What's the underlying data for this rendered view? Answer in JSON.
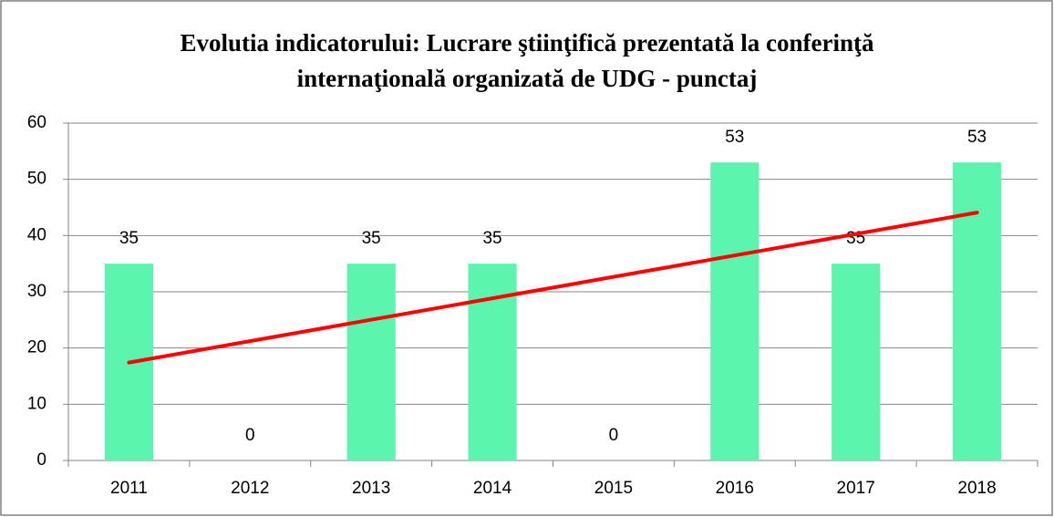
{
  "chart_data": {
    "type": "bar",
    "title": "Evolutia indicatorului: Lucrare ştiinţifică prezentată la conferinţă internaţională organizată de UDG - punctaj",
    "categories": [
      "2011",
      "2012",
      "2013",
      "2014",
      "2015",
      "2016",
      "2017",
      "2018"
    ],
    "values": [
      35,
      0,
      35,
      35,
      0,
      53,
      35,
      53
    ],
    "color": "#5cf5b0",
    "trendline": {
      "type": "linear",
      "color": "#ff0000"
    },
    "ylim": [
      0,
      60
    ],
    "yticks": [
      0,
      10,
      20,
      30,
      40,
      50,
      60
    ],
    "grid": true
  }
}
